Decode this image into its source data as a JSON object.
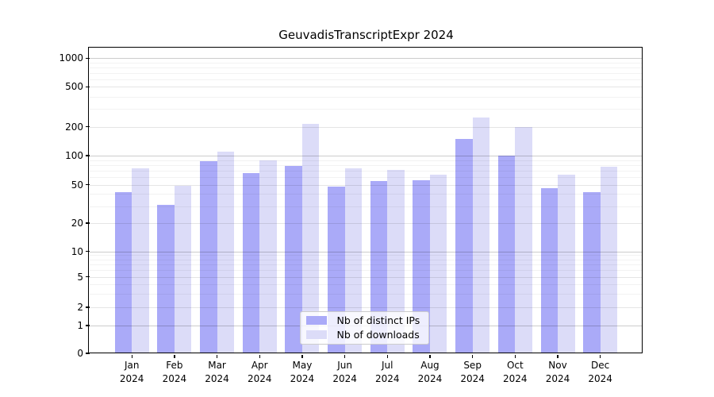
{
  "title": "GeuvadisTranscriptExpr 2024",
  "chart_data": {
    "type": "bar",
    "title": "GeuvadisTranscriptExpr 2024",
    "categories": [
      "Jan 2024",
      "Feb 2024",
      "Mar 2024",
      "Apr 2024",
      "May 2024",
      "Jun 2024",
      "Jul 2024",
      "Aug 2024",
      "Sep 2024",
      "Oct 2024",
      "Nov 2024",
      "Dec 2024"
    ],
    "x_months": [
      "Jan",
      "Feb",
      "Mar",
      "Apr",
      "May",
      "Jun",
      "Jul",
      "Aug",
      "Sep",
      "Oct",
      "Nov",
      "Dec"
    ],
    "x_year": "2024",
    "series": [
      {
        "name": "Nb of distinct IPs",
        "color": "#aaaaf8",
        "values": [
          42,
          31,
          88,
          66,
          78,
          48,
          55,
          56,
          148,
          100,
          46,
          42
        ]
      },
      {
        "name": "Nb of downloads",
        "color": "#dcdcf8",
        "values": [
          74,
          49,
          110,
          90,
          212,
          74,
          71,
          63,
          245,
          200,
          64,
          77
        ]
      }
    ],
    "yscale": "log",
    "ylim": [
      0,
      1000
    ],
    "y_tick_labels": [
      "0",
      "1",
      "2",
      "5",
      "10",
      "20",
      "50",
      "100",
      "200",
      "500",
      "1000"
    ],
    "grid": true,
    "legend_position": "lower center"
  },
  "legend": {
    "items": [
      {
        "label": "Nb of distinct IPs",
        "color": "#aaaaf8"
      },
      {
        "label": "Nb of downloads",
        "color": "#dcdcf8"
      }
    ]
  }
}
